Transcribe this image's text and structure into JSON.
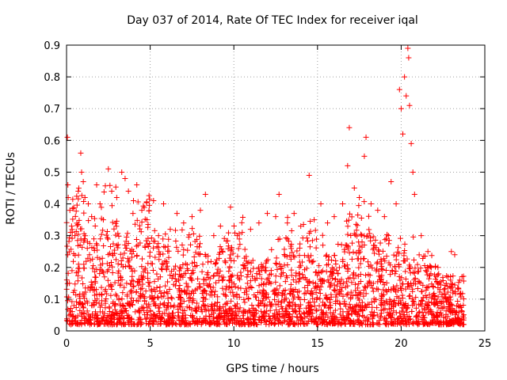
{
  "chart_data": {
    "type": "scatter",
    "title": "Day 037 of 2014, Rate Of TEC Index for receiver iqal",
    "xlabel": "GPS time / hours",
    "ylabel": "ROTI / TECUs",
    "xlim": [
      0,
      25
    ],
    "ylim": [
      0,
      0.9
    ],
    "xticks": [
      0,
      5,
      10,
      15,
      20,
      25
    ],
    "yticks": [
      0,
      0.1,
      0.2,
      0.3,
      0.4,
      0.5,
      0.6,
      0.7,
      0.8,
      0.9
    ],
    "grid": true,
    "marker": "+",
    "color": "#ff0000",
    "series": [
      {
        "values_note": "",
        "points": [
          [
            0.05,
            0.61
          ],
          [
            0.08,
            0.46
          ],
          [
            0.1,
            0.42
          ],
          [
            0.2,
            0.38
          ],
          [
            0.3,
            0.33
          ],
          [
            0.5,
            0.3
          ],
          [
            0.7,
            0.44
          ],
          [
            0.85,
            0.56
          ],
          [
            0.9,
            0.5
          ],
          [
            1.0,
            0.47
          ],
          [
            1.1,
            0.42
          ],
          [
            1.3,
            0.4
          ],
          [
            1.5,
            0.36
          ],
          [
            1.8,
            0.46
          ],
          [
            2.0,
            0.4
          ],
          [
            2.2,
            0.35
          ],
          [
            2.5,
            0.51
          ],
          [
            2.7,
            0.44
          ],
          [
            3.0,
            0.42
          ],
          [
            3.3,
            0.5
          ],
          [
            3.5,
            0.48
          ],
          [
            3.7,
            0.44
          ],
          [
            4.0,
            0.41
          ],
          [
            4.2,
            0.46
          ],
          [
            4.5,
            0.38
          ],
          [
            4.8,
            0.35
          ],
          [
            5.2,
            0.41
          ],
          [
            5.5,
            0.3
          ],
          [
            5.8,
            0.4
          ],
          [
            6.2,
            0.32
          ],
          [
            6.6,
            0.37
          ],
          [
            7.0,
            0.34
          ],
          [
            7.5,
            0.36
          ],
          [
            8.0,
            0.38
          ],
          [
            8.3,
            0.43
          ],
          [
            8.8,
            0.3
          ],
          [
            9.2,
            0.33
          ],
          [
            9.8,
            0.39
          ],
          [
            10.2,
            0.3
          ],
          [
            10.5,
            0.31
          ],
          [
            11.0,
            0.32
          ],
          [
            11.5,
            0.34
          ],
          [
            12.0,
            0.37
          ],
          [
            12.5,
            0.36
          ],
          [
            12.7,
            0.43
          ],
          [
            13.2,
            0.34
          ],
          [
            13.6,
            0.37
          ],
          [
            14.0,
            0.33
          ],
          [
            14.5,
            0.49
          ],
          [
            14.8,
            0.35
          ],
          [
            15.2,
            0.4
          ],
          [
            15.6,
            0.34
          ],
          [
            16.0,
            0.36
          ],
          [
            16.5,
            0.4
          ],
          [
            16.8,
            0.52
          ],
          [
            16.9,
            0.64
          ],
          [
            17.2,
            0.45
          ],
          [
            17.5,
            0.42
          ],
          [
            17.8,
            0.55
          ],
          [
            17.9,
            0.61
          ],
          [
            18.2,
            0.4
          ],
          [
            18.6,
            0.38
          ],
          [
            19.0,
            0.36
          ],
          [
            19.4,
            0.47
          ],
          [
            19.7,
            0.4
          ],
          [
            19.9,
            0.76
          ],
          [
            20.0,
            0.7
          ],
          [
            20.1,
            0.62
          ],
          [
            20.2,
            0.8
          ],
          [
            20.3,
            0.74
          ],
          [
            20.4,
            0.89
          ],
          [
            20.45,
            0.86
          ],
          [
            20.5,
            0.71
          ],
          [
            20.6,
            0.59
          ],
          [
            20.7,
            0.5
          ],
          [
            20.8,
            0.43
          ],
          [
            21.2,
            0.3
          ],
          [
            21.6,
            0.25
          ],
          [
            22.2,
            0.2
          ],
          [
            22.8,
            0.17
          ],
          [
            23.0,
            0.25
          ],
          [
            23.2,
            0.24
          ],
          [
            23.5,
            0.16
          ]
        ]
      }
    ]
  }
}
